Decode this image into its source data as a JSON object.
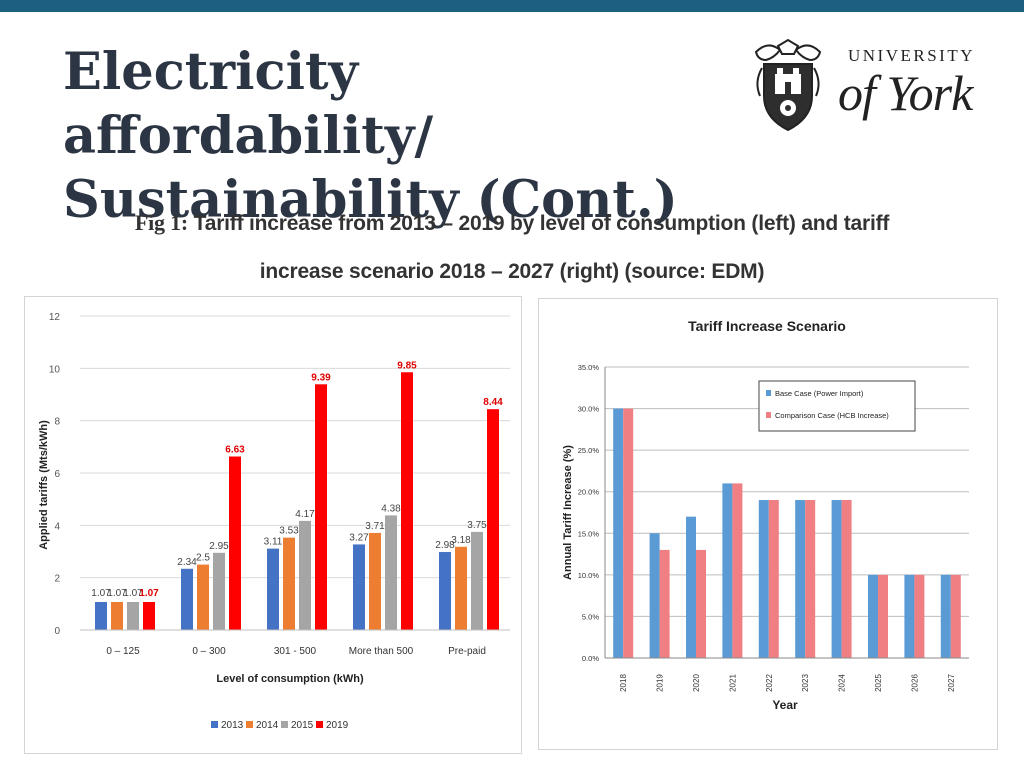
{
  "slide": {
    "title": "Electricity affordability/ Sustainability (Cont.)",
    "caption_prefix": "Fig 1:",
    "caption_line1": "Tariff increase from 2013 – 2019 by level of consumption (left) and tariff",
    "caption_line2": "increase scenario 2018 – 2027 (right) (source: EDM)"
  },
  "logo": {
    "line1": "UNIVERSITY",
    "line2": "of York",
    "icon": "university-crest-icon"
  },
  "colors": {
    "topbar": "#1d5f80",
    "s2013": "#4472c4",
    "s2014": "#ed7d31",
    "s2015": "#a5a5a5",
    "s2019": "#ff0000",
    "base_case": "#5b9bd5",
    "comparison_case": "#f07f83"
  },
  "chart_data": [
    {
      "type": "bar",
      "title": "",
      "xlabel": "Level of consumption (kWh)",
      "ylabel": "Applied tariffs (Mts/kWh)",
      "ylim": [
        0,
        12
      ],
      "yticks": [
        0,
        2,
        4,
        6,
        8,
        10,
        12
      ],
      "categories": [
        "0 – 125",
        "0 – 300",
        "301 - 500",
        "More than 500",
        "Pre-paid"
      ],
      "series": [
        {
          "name": "2013",
          "values": [
            1.07,
            2.34,
            3.11,
            3.27,
            2.98
          ],
          "labels": [
            "1.07",
            "2.34",
            "3.11",
            "3.27",
            "2.98"
          ]
        },
        {
          "name": "2014",
          "values": [
            1.07,
            2.5,
            3.53,
            3.71,
            3.18
          ],
          "labels": [
            "1.07",
            "2.5",
            "3.53",
            "3.71",
            "3.18"
          ]
        },
        {
          "name": "2015",
          "values": [
            1.07,
            2.95,
            4.17,
            4.38,
            3.75
          ],
          "labels": [
            "1.07",
            "2.95",
            "4.17",
            "4.38",
            "3.75"
          ]
        },
        {
          "name": "2019",
          "values": [
            1.07,
            6.63,
            9.39,
            9.85,
            8.44
          ],
          "labels": [
            "1.07",
            "6.63",
            "9.39",
            "9.85",
            "8.44"
          ]
        }
      ],
      "legend": "bottom",
      "grid": true
    },
    {
      "type": "bar",
      "title": "Tariff Increase Scenario",
      "xlabel": "Year",
      "ylabel": "Annual Tariff Increase (%)",
      "ylim": [
        0,
        35
      ],
      "yticks": [
        "0.0%",
        "5.0%",
        "10.0%",
        "15.0%",
        "20.0%",
        "25.0%",
        "30.0%",
        "35.0%"
      ],
      "categories": [
        "2018",
        "2019",
        "2020",
        "2021",
        "2022",
        "2023",
        "2024",
        "2025",
        "2026",
        "2027"
      ],
      "series": [
        {
          "name": "Base Case (Power Import)",
          "values": [
            30,
            15,
            17,
            21,
            19,
            19,
            19,
            10,
            10,
            10
          ]
        },
        {
          "name": "Comparison Case (HCB Increase)",
          "values": [
            30,
            13,
            13,
            21,
            19,
            19,
            19,
            10,
            10,
            10
          ]
        }
      ],
      "legend": "top-right",
      "grid": true
    }
  ]
}
